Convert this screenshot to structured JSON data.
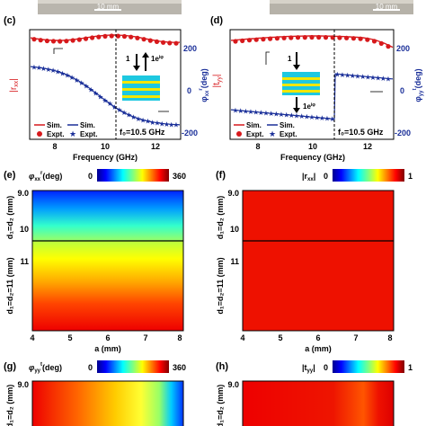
{
  "scale_bars": [
    "10 mm",
    "10 mm"
  ],
  "panel_c": {
    "label": "(c)",
    "y_left_label": "|r",
    "y_left_sub": "xx",
    "y_right_label": "φ",
    "y_right_sub": "xx",
    "y_right_sup": "r",
    "y_right_unit": "(deg)",
    "right_ticks": [
      "200",
      "0",
      "-200"
    ],
    "x_ticks": [
      "8",
      "10",
      "12"
    ],
    "xlabel": "Frequency (GHz)",
    "legend": [
      "Sim.",
      "Sim.",
      "Expt.",
      "Expt."
    ],
    "annotation": "f₀=10.5 GHz",
    "inset_left": "1",
    "inset_right": "1e",
    "inset_sup": "iφ",
    "colors": {
      "red": "#d7191c",
      "blue": "#1a2f99"
    }
  },
  "panel_d": {
    "label": "(d)",
    "y_left_label": "|t",
    "y_left_sub": "yy",
    "y_right_label": "φ",
    "y_right_sub": "yy",
    "y_right_sup": "t",
    "y_right_unit": "(deg)",
    "right_ticks": [
      "200",
      "0",
      "-200"
    ],
    "x_ticks": [
      "8",
      "10",
      "12"
    ],
    "xlabel": "Frequency (GHz)",
    "legend": [
      "Sim.",
      "Sim.",
      "Expt.",
      "Expt."
    ],
    "annotation": "f₀=10.5 GHz",
    "inset_top": "1",
    "inset_bottom": "1e",
    "inset_sup": "iφ"
  },
  "panel_e": {
    "label": "(e)",
    "cbar_label": "φ",
    "cbar_sub": "xx",
    "cbar_sup": "r",
    "cbar_unit": "(deg)",
    "cbar_min": "0",
    "cbar_max": "360",
    "y_ticks": [
      "9.0",
      "10",
      "11"
    ],
    "y_label_top": "d₁=d₂ (mm)",
    "y_label_bottom": "d₁=d₂=11 (mm)",
    "x_ticks": [
      "4",
      "5",
      "6",
      "7",
      "8"
    ],
    "xlabel": "a (mm)"
  },
  "panel_f": {
    "label": "(f)",
    "cbar_label": "|r",
    "cbar_sub": "xx",
    "cbar_min": "0",
    "cbar_max": "1",
    "y_ticks": [
      "9.0",
      "10",
      "11"
    ],
    "y_label_top": "d₁=d₂ (mm)",
    "y_label_bottom": "d₁=d₂=11 (mm)",
    "x_ticks": [
      "4",
      "5",
      "6",
      "7",
      "8"
    ],
    "xlabel": "a (mm)"
  },
  "panel_g": {
    "label": "(g)",
    "cbar_label": "φ",
    "cbar_sub": "yy",
    "cbar_sup": "t",
    "cbar_unit": "(deg)",
    "cbar_min": "0",
    "cbar_max": "360",
    "y_tick": "9.0",
    "y_label": "d₁=d₂ (mm)"
  },
  "panel_h": {
    "label": "(h)",
    "cbar_label": "|t",
    "cbar_sub": "yy",
    "cbar_min": "0",
    "cbar_max": "1",
    "y_tick": "9.0",
    "y_label": "d₁=d₂ (mm)"
  }
}
